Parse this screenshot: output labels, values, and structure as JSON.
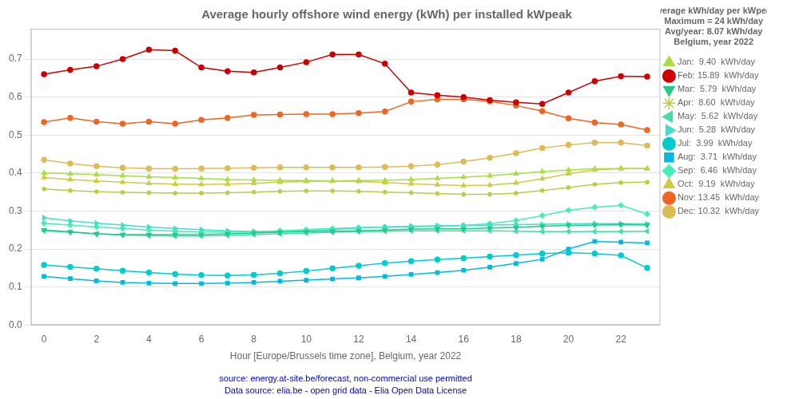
{
  "chart_data": {
    "type": "line",
    "title": "Average hourly offshore wind energy (kWh) per installed kWpeak",
    "xlabel": "Hour [Europe/Brussels time zone], Belgium, year 2022",
    "legend_title": [
      "Average kWh/day per kWpeak",
      "Maximum = 24 kWh/day",
      "Avg/year: 8.07 kWh/day",
      "Belgium, year 2022"
    ],
    "annotations": [
      {
        "text": "source: energy.at-site.be/forecast, non-commercial use permitted",
        "color": "#0000cc"
      },
      {
        "text": "Data source: elia.be - open grid data - Elia Open Data License",
        "color": "#0000cc"
      }
    ],
    "x": [
      0,
      1,
      2,
      3,
      4,
      5,
      6,
      7,
      8,
      9,
      10,
      11,
      12,
      13,
      14,
      15,
      16,
      17,
      18,
      19,
      20,
      21,
      22,
      23
    ],
    "series": [
      {
        "name": "Jan:  9.40  kWh/day",
        "color": "#aadd44",
        "marker": "^",
        "values": [
          0.4,
          0.398,
          0.396,
          0.393,
          0.39,
          0.388,
          0.386,
          0.383,
          0.382,
          0.381,
          0.38,
          0.379,
          0.38,
          0.381,
          0.383,
          0.386,
          0.389,
          0.393,
          0.398,
          0.404,
          0.408,
          0.411,
          0.412,
          0.412
        ]
      },
      {
        "name": "Feb: 15.89  kWh/day",
        "color": "#cc0000",
        "marker": "o",
        "values": [
          0.66,
          0.672,
          0.681,
          0.7,
          0.725,
          0.722,
          0.678,
          0.668,
          0.665,
          0.678,
          0.692,
          0.712,
          0.712,
          0.688,
          0.612,
          0.605,
          0.6,
          0.592,
          0.586,
          0.582,
          0.612,
          0.642,
          0.655,
          0.654
        ]
      },
      {
        "name": "Mar:  5.79  kWh/day",
        "color": "#22cc88",
        "marker": "v",
        "values": [
          0.25,
          0.245,
          0.24,
          0.238,
          0.238,
          0.238,
          0.238,
          0.24,
          0.242,
          0.244,
          0.246,
          0.247,
          0.248,
          0.25,
          0.252,
          0.253,
          0.253,
          0.255,
          0.257,
          0.26,
          0.262,
          0.263,
          0.264,
          0.263
        ]
      },
      {
        "name": "Apr:  8.60  kWh/day",
        "color": "#bbcc44",
        "marker": "*",
        "values": [
          0.358,
          0.354,
          0.351,
          0.349,
          0.348,
          0.347,
          0.347,
          0.348,
          0.35,
          0.352,
          0.353,
          0.353,
          0.352,
          0.35,
          0.348,
          0.346,
          0.344,
          0.344,
          0.347,
          0.354,
          0.362,
          0.37,
          0.375,
          0.376
        ]
      },
      {
        "name": "May:  5.62  kWh/day",
        "color": "#44ddaa",
        "marker": "<",
        "values": [
          0.248,
          0.244,
          0.24,
          0.237,
          0.235,
          0.234,
          0.234,
          0.236,
          0.238,
          0.24,
          0.242,
          0.244,
          0.246,
          0.247,
          0.248,
          0.248,
          0.248,
          0.248,
          0.247,
          0.246,
          0.246,
          0.246,
          0.246,
          0.247
        ]
      },
      {
        "name": "Jun:  5.28  kWh/day",
        "color": "#44ddcc",
        "marker": ">",
        "values": [
          0.282,
          0.274,
          0.268,
          0.263,
          0.258,
          0.254,
          0.251,
          0.248,
          0.246,
          0.246,
          0.248,
          0.251,
          0.255,
          0.258,
          0.26,
          0.261,
          0.262,
          0.263,
          0.264,
          0.265,
          0.266,
          0.267,
          0.267,
          0.266
        ]
      },
      {
        "name": "Jul:  3.99  kWh/day",
        "color": "#00cccc",
        "marker": "o",
        "values": [
          0.158,
          0.153,
          0.148,
          0.143,
          0.138,
          0.134,
          0.131,
          0.13,
          0.132,
          0.136,
          0.142,
          0.149,
          0.156,
          0.163,
          0.168,
          0.172,
          0.176,
          0.18,
          0.184,
          0.188,
          0.19,
          0.188,
          0.183,
          0.15
        ]
      },
      {
        "name": "Aug:  3.71  kWh/day",
        "color": "#00bbdd",
        "marker": "s",
        "values": [
          0.128,
          0.122,
          0.116,
          0.112,
          0.11,
          0.109,
          0.109,
          0.11,
          0.112,
          0.115,
          0.118,
          0.121,
          0.124,
          0.128,
          0.133,
          0.138,
          0.144,
          0.152,
          0.162,
          0.173,
          0.2,
          0.22,
          0.218,
          0.216
        ]
      },
      {
        "name": "Sep:  6.46  kWh/day",
        "color": "#44eebb",
        "marker": "D",
        "values": [
          0.268,
          0.263,
          0.258,
          0.254,
          0.25,
          0.247,
          0.245,
          0.244,
          0.245,
          0.248,
          0.251,
          0.254,
          0.256,
          0.258,
          0.259,
          0.26,
          0.262,
          0.267,
          0.275,
          0.288,
          0.302,
          0.31,
          0.315,
          0.292
        ]
      },
      {
        "name": "Oct:  9.19  kWh/day",
        "color": "#cccc44",
        "marker": "^",
        "values": [
          0.388,
          0.383,
          0.379,
          0.376,
          0.373,
          0.371,
          0.37,
          0.371,
          0.373,
          0.376,
          0.378,
          0.379,
          0.378,
          0.375,
          0.372,
          0.369,
          0.367,
          0.368,
          0.374,
          0.385,
          0.398,
          0.408,
          0.412,
          0.412
        ]
      },
      {
        "name": "Nov: 13.45  kWh/day",
        "color": "#ee6622",
        "marker": "o",
        "values": [
          0.534,
          0.545,
          0.535,
          0.53,
          0.535,
          0.53,
          0.54,
          0.545,
          0.553,
          0.554,
          0.555,
          0.555,
          0.558,
          0.562,
          0.588,
          0.594,
          0.594,
          0.589,
          0.578,
          0.563,
          0.544,
          0.533,
          0.528,
          0.513
        ]
      },
      {
        "name": "Dec: 10.32  kWh/day",
        "color": "#ddbb55",
        "marker": "o",
        "values": [
          0.435,
          0.425,
          0.418,
          0.414,
          0.412,
          0.411,
          0.412,
          0.413,
          0.414,
          0.415,
          0.415,
          0.415,
          0.415,
          0.416,
          0.418,
          0.422,
          0.43,
          0.44,
          0.452,
          0.466,
          0.474,
          0.48,
          0.48,
          0.472
        ]
      }
    ],
    "xlim": [
      -0.5,
      23.5
    ],
    "xticks": [
      0,
      2,
      4,
      6,
      8,
      10,
      12,
      14,
      16,
      18,
      20,
      22
    ],
    "ylim": [
      0.0,
      0.78
    ],
    "yticks": [
      {
        "value": 0.0,
        "label": "0.0"
      },
      0.1,
      0.2,
      0.3,
      0.4,
      0.5,
      0.6,
      0.7
    ],
    "grid": "y",
    "legend": "right"
  }
}
